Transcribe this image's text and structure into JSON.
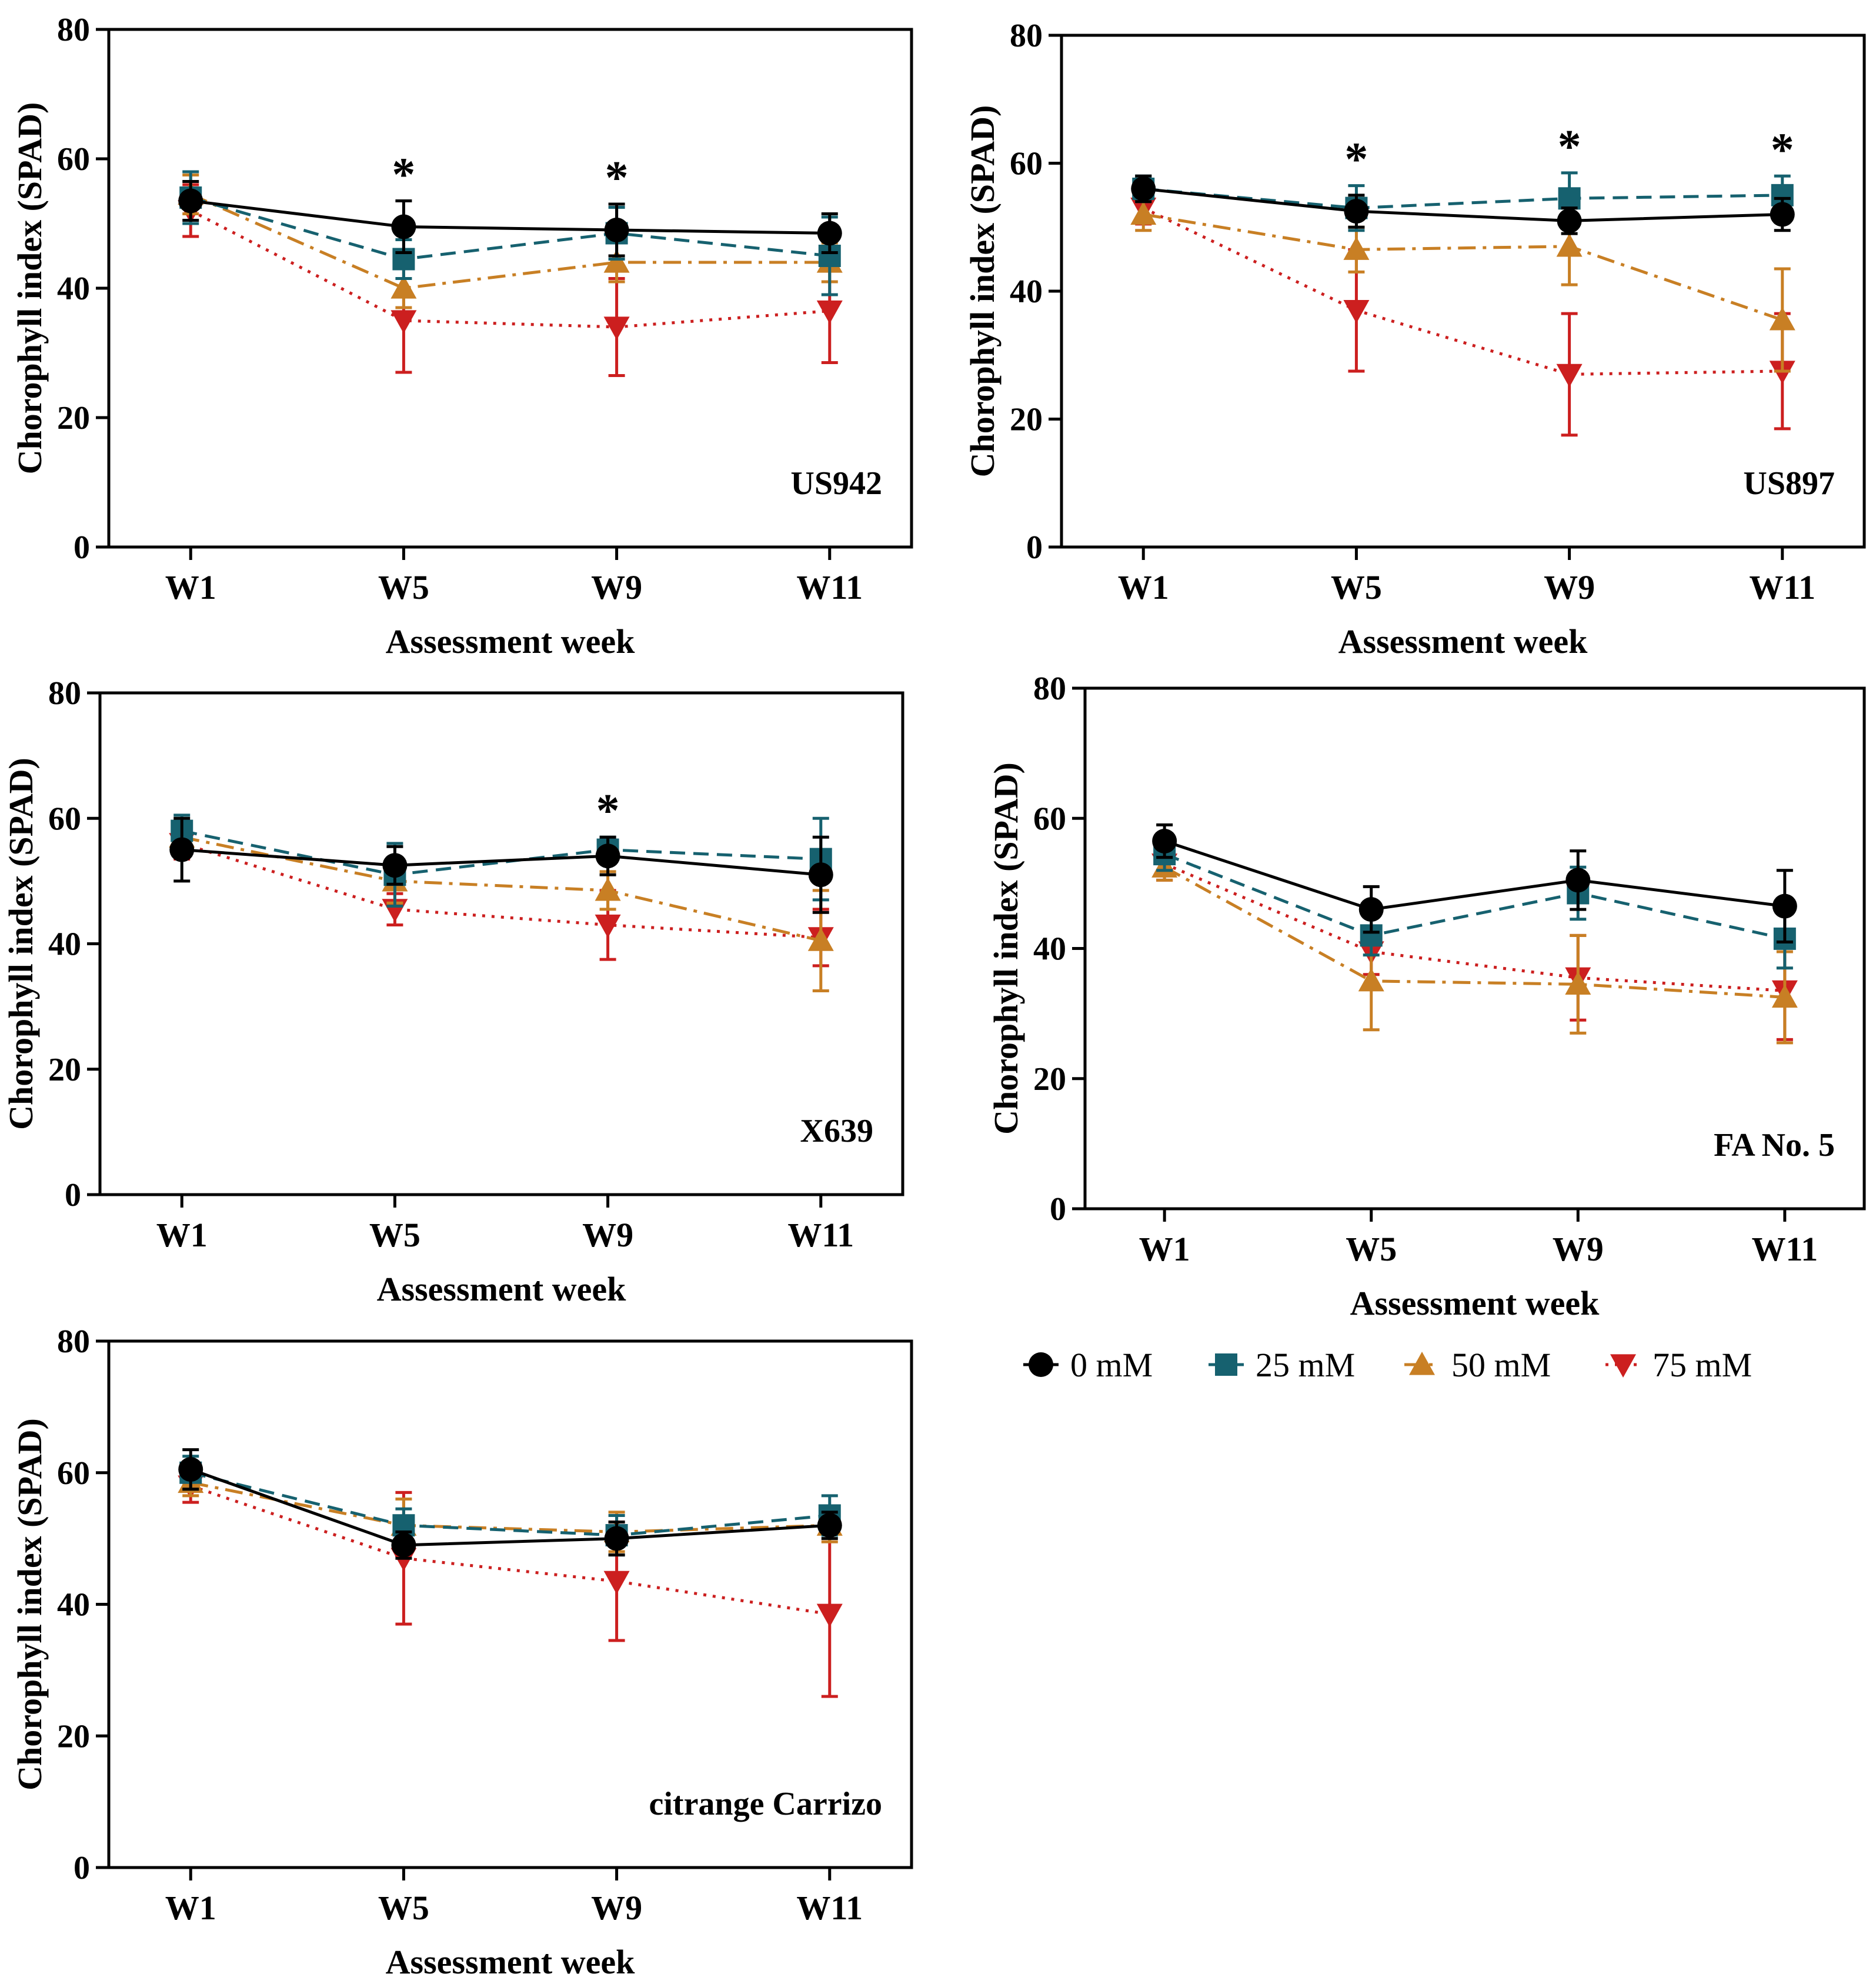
{
  "chart_data": {
    "type": "line",
    "shared": {
      "xlabel": "Assessment week",
      "ylabel": "Chorophyll index (SPAD)",
      "categories": [
        "W1",
        "W5",
        "W9",
        "W11"
      ],
      "ylim": [
        0,
        80
      ],
      "yticks": [
        "0",
        "20",
        "40",
        "60",
        "80"
      ],
      "series_meta": [
        {
          "name": "0 mM",
          "color": "#000000",
          "marker": "circle",
          "dash": "solid"
        },
        {
          "name": "25 mM",
          "color": "#16616f",
          "marker": "square",
          "dash": "dashed"
        },
        {
          "name": "50 mM",
          "color": "#c87f24",
          "marker": "triangle-up",
          "dash": "dashdot"
        },
        {
          "name": "75 mM",
          "color": "#cc1f1f",
          "marker": "triangle-down",
          "dash": "dotted"
        }
      ]
    },
    "panels": [
      {
        "label": "US942",
        "significance": [
          "",
          "*",
          "*",
          ""
        ],
        "series": [
          {
            "name": "0 mM",
            "values": [
              53.5,
              49.5,
              49,
              48.5
            ],
            "errors": [
              3,
              4,
              4,
              3
            ]
          },
          {
            "name": "25 mM",
            "values": [
              54,
              44.5,
              48.5,
              45
            ],
            "errors": [
              4,
              3,
              4,
              6
            ]
          },
          {
            "name": "50 mM",
            "values": [
              54.5,
              40,
              44,
              44
            ],
            "errors": [
              3,
              3,
              3,
              3
            ]
          },
          {
            "name": "75 mM",
            "values": [
              52,
              35,
              34,
              36.5
            ],
            "errors": [
              4,
              8,
              7.5,
              8
            ]
          }
        ]
      },
      {
        "label": "US897",
        "significance": [
          "",
          "*",
          "*",
          "*"
        ],
        "series": [
          {
            "name": "0 mM",
            "values": [
              56,
              52.5,
              51,
              52
            ],
            "errors": [
              2,
              2.5,
              2,
              2.5
            ]
          },
          {
            "name": "25 mM",
            "values": [
              56,
              53,
              54.5,
              55
            ],
            "errors": [
              2,
              3.5,
              4,
              3
            ]
          },
          {
            "name": "50 mM",
            "values": [
              52,
              46.5,
              47,
              35.5
            ],
            "errors": [
              2.5,
              3.5,
              6,
              8
            ]
          },
          {
            "name": "75 mM",
            "values": [
              53,
              37,
              27,
              27.5
            ],
            "errors": [
              2.5,
              9.5,
              9.5,
              9
            ]
          }
        ]
      },
      {
        "label": "X639",
        "significance": [
          "",
          "",
          "*",
          ""
        ],
        "series": [
          {
            "name": "0 mM",
            "values": [
              55,
              52.5,
              54,
              51
            ],
            "errors": [
              5,
              3,
              3,
              6
            ]
          },
          {
            "name": "25 mM",
            "values": [
              58,
              51,
              55,
              53.5
            ],
            "errors": [
              2.5,
              5,
              2,
              6.5
            ]
          },
          {
            "name": "50 mM",
            "values": [
              57,
              50,
              48.5,
              40.5
            ],
            "errors": [
              2.5,
              3.5,
              3,
              8
            ]
          },
          {
            "name": "75 mM",
            "values": [
              56,
              45.5,
              43,
              41
            ],
            "errors": [
              2.5,
              2.5,
              5.5,
              4.5
            ]
          }
        ]
      },
      {
        "label": "FA No. 5",
        "significance": [
          "",
          "",
          "",
          ""
        ],
        "series": [
          {
            "name": "0 mM",
            "values": [
              56.5,
              46,
              50.5,
              46.5
            ],
            "errors": [
              2.5,
              3.5,
              4.5,
              5.5
            ]
          },
          {
            "name": "25 mM",
            "values": [
              54.5,
              42,
              48.5,
              41.5
            ],
            "errors": [
              2.5,
              3,
              4,
              4.5
            ]
          },
          {
            "name": "50 mM",
            "values": [
              52.5,
              35,
              34.5,
              32.5
            ],
            "errors": [
              2,
              7.5,
              7.5,
              7
            ]
          },
          {
            "name": "75 mM",
            "values": [
              53,
              39.5,
              35.5,
              33.5
            ],
            "errors": [
              2.5,
              3.5,
              6.5,
              7.5
            ]
          }
        ]
      },
      {
        "label": "citrange Carrizo",
        "significance": [
          "",
          "",
          "",
          ""
        ],
        "series": [
          {
            "name": "0 mM",
            "values": [
              60.5,
              49,
              50,
              52
            ],
            "errors": [
              3,
              2,
              2.5,
              2
            ]
          },
          {
            "name": "25 mM",
            "values": [
              60,
              52,
              50.5,
              53.5
            ],
            "errors": [
              2.5,
              2.5,
              3,
              3
            ]
          },
          {
            "name": "50 mM",
            "values": [
              58.5,
              52,
              51,
              52
            ],
            "errors": [
              2,
              4,
              3,
              2.5
            ]
          },
          {
            "name": "75 mM",
            "values": [
              58,
              47,
              43.5,
              38.5
            ],
            "errors": [
              2.5,
              10,
              9,
              12.5
            ]
          }
        ]
      }
    ]
  }
}
